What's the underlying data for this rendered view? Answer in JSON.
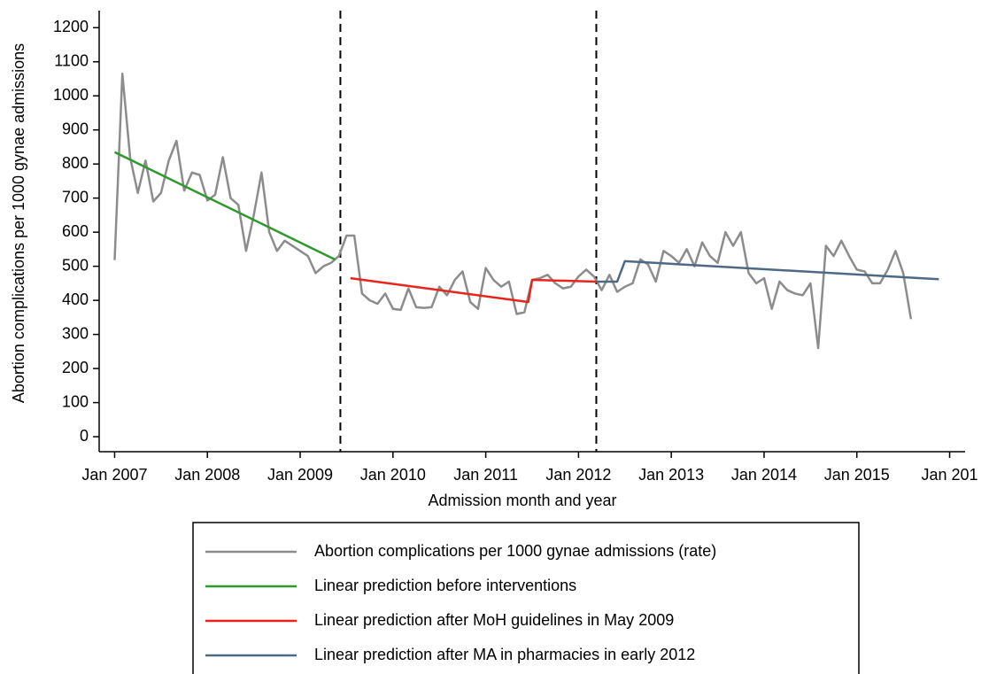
{
  "chart_data": {
    "type": "line",
    "x_label": "Admission month and year",
    "y_label": "Abortion complications per 1000 gynae admissions",
    "xlim": [
      -2,
      110
    ],
    "ylim": [
      -44,
      1250
    ],
    "xticks": [
      {
        "value": 0,
        "label": "Jan 2007"
      },
      {
        "value": 12,
        "label": "Jan 2008"
      },
      {
        "value": 24,
        "label": "Jan 2009"
      },
      {
        "value": 36,
        "label": "Jan 2010"
      },
      {
        "value": 48,
        "label": "Jan 2011"
      },
      {
        "value": 60,
        "label": "Jan 2012"
      },
      {
        "value": 72,
        "label": "Jan 2013"
      },
      {
        "value": 84,
        "label": "Jan 2014"
      },
      {
        "value": 96,
        "label": "Jan 2015"
      },
      {
        "value": 108,
        "label": "Jan 201"
      }
    ],
    "yticks": [
      0,
      100,
      200,
      300,
      400,
      500,
      600,
      700,
      800,
      900,
      1000,
      1100,
      1200
    ],
    "vlines": [
      29.2,
      62.3
    ],
    "series": [
      {
        "name": "Abortion complications per 1000 gynae admissions (rate)",
        "color": "#8c8c8c",
        "x": [
          0,
          1,
          2,
          3,
          4,
          5,
          6,
          7,
          8,
          9,
          10,
          11,
          12,
          13,
          14,
          15,
          16,
          17,
          18,
          19,
          20,
          21,
          22,
          23,
          24,
          25,
          26,
          27,
          28,
          29,
          30,
          31,
          32,
          33,
          34,
          35,
          36,
          37,
          38,
          39,
          40,
          41,
          42,
          43,
          44,
          45,
          46,
          47,
          48,
          49,
          50,
          51,
          52,
          53,
          54,
          55,
          56,
          57,
          58,
          59,
          60,
          61,
          62,
          63,
          64,
          65,
          66,
          67,
          68,
          69,
          70,
          71,
          72,
          73,
          74,
          75,
          76,
          77,
          78,
          79,
          80,
          81,
          82,
          83,
          84,
          85,
          86,
          87,
          88,
          89,
          90,
          91,
          92,
          93,
          94,
          95,
          96,
          97,
          98,
          99,
          100,
          101,
          102,
          103
        ],
        "values": [
          518,
          1065,
          820,
          715,
          810,
          690,
          715,
          810,
          868,
          722,
          775,
          768,
          693,
          710,
          820,
          700,
          680,
          545,
          650,
          775,
          600,
          545,
          575,
          560,
          545,
          530,
          480,
          500,
          510,
          530,
          590,
          590,
          420,
          400,
          390,
          420,
          375,
          372,
          435,
          380,
          378,
          380,
          440,
          415,
          460,
          485,
          395,
          375,
          495,
          460,
          440,
          455,
          360,
          365,
          460,
          465,
          475,
          450,
          435,
          440,
          470,
          490,
          470,
          430,
          475,
          425,
          440,
          450,
          520,
          505,
          455,
          545,
          530,
          510,
          550,
          500,
          570,
          530,
          510,
          600,
          560,
          600,
          480,
          450,
          465,
          375,
          455,
          430,
          420,
          415,
          450,
          260,
          560,
          530,
          575,
          530,
          490,
          485,
          450,
          450,
          490,
          545,
          480,
          345
        ]
      },
      {
        "name": "Linear prediction before interventions",
        "color": "#2e9a2e",
        "x": [
          0,
          28.5
        ],
        "values": [
          835,
          520
        ]
      },
      {
        "name": "Linear prediction after MoH guidelines in May 2009",
        "color": "#e8241c",
        "x": [
          30.5,
          53.5,
          54,
          62.3
        ],
        "values": [
          465,
          395,
          460,
          455
        ]
      },
      {
        "name": "Linear prediction after MA in pharmacies in early 2012",
        "color": "#4d6a84",
        "x": [
          62.3,
          65,
          66,
          106.6
        ],
        "values": [
          455,
          455,
          515,
          462
        ]
      }
    ]
  }
}
